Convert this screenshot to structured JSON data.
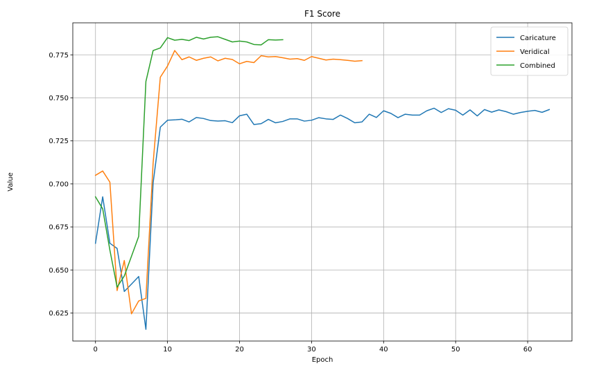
{
  "chart_data": {
    "type": "line",
    "title": "F1 Score",
    "xlabel": "Epoch",
    "ylabel": "Value",
    "xlim": [
      -3.15,
      66.15
    ],
    "ylim": [
      0.6087,
      0.7936
    ],
    "xticks": [
      0,
      10,
      20,
      30,
      40,
      50,
      60
    ],
    "yticks": [
      0.625,
      0.65,
      0.675,
      0.7,
      0.725,
      0.75,
      0.775
    ],
    "ytick_labels": [
      "0.625",
      "0.650",
      "0.675",
      "0.700",
      "0.725",
      "0.750",
      "0.775"
    ],
    "grid": true,
    "legend_position": "top-right",
    "series": [
      {
        "name": "Caricature",
        "color": "#1f77b4",
        "x": [
          0,
          1,
          2,
          3,
          4,
          5,
          6,
          7,
          8,
          9,
          10,
          11,
          12,
          13,
          14,
          15,
          16,
          17,
          18,
          19,
          20,
          21,
          22,
          23,
          24,
          25,
          26,
          27,
          28,
          29,
          30,
          31,
          32,
          33,
          34,
          35,
          36,
          37,
          38,
          39,
          40,
          41,
          42,
          43,
          44,
          45,
          46,
          47,
          48,
          49,
          50,
          51,
          52,
          53,
          54,
          55,
          56,
          57,
          58,
          59,
          60,
          61,
          62,
          63
        ],
        "y": [
          0.6655,
          0.6925,
          0.6655,
          0.6625,
          0.6375,
          0.6418,
          0.6462,
          0.6155,
          0.7005,
          0.733,
          0.737,
          0.7372,
          0.7376,
          0.736,
          0.7386,
          0.738,
          0.7368,
          0.7365,
          0.7367,
          0.7356,
          0.7396,
          0.7405,
          0.7345,
          0.735,
          0.7375,
          0.7355,
          0.7363,
          0.7378,
          0.7378,
          0.7365,
          0.737,
          0.7385,
          0.7378,
          0.7375,
          0.74,
          0.738,
          0.7355,
          0.736,
          0.7405,
          0.7386,
          0.7425,
          0.741,
          0.7385,
          0.7405,
          0.74,
          0.74,
          0.7425,
          0.744,
          0.7415,
          0.7437,
          0.7428,
          0.74,
          0.743,
          0.7395,
          0.7432,
          0.7417,
          0.743,
          0.742,
          0.7405,
          0.7415,
          0.7422,
          0.7427,
          0.7416,
          0.7432
        ]
      },
      {
        "name": "Veridical",
        "color": "#ff7f0e",
        "x": [
          0,
          1,
          2,
          3,
          4,
          5,
          6,
          7,
          8,
          9,
          10,
          11,
          12,
          13,
          14,
          15,
          16,
          17,
          18,
          19,
          20,
          21,
          22,
          23,
          24,
          25,
          26,
          27,
          28,
          29,
          30,
          31,
          32,
          33,
          34,
          35,
          36,
          37
        ],
        "y": [
          0.705,
          0.7075,
          0.701,
          0.638,
          0.6555,
          0.6245,
          0.632,
          0.6335,
          0.712,
          0.762,
          0.7685,
          0.7775,
          0.7722,
          0.7738,
          0.7718,
          0.773,
          0.7738,
          0.7715,
          0.773,
          0.7723,
          0.7698,
          0.7712,
          0.7705,
          0.7745,
          0.7738,
          0.774,
          0.7733,
          0.7725,
          0.7728,
          0.7718,
          0.774,
          0.773,
          0.772,
          0.7725,
          0.7722,
          0.7718,
          0.7713,
          0.7716
        ]
      },
      {
        "name": "Combined",
        "color": "#2ca02c",
        "x": [
          0,
          1,
          2,
          3,
          4,
          5,
          6,
          7,
          8,
          9,
          10,
          11,
          12,
          13,
          14,
          15,
          16,
          17,
          18,
          19,
          20,
          21,
          22,
          23,
          24,
          25,
          26
        ],
        "y": [
          0.6925,
          0.6855,
          0.6615,
          0.64,
          0.6465,
          0.658,
          0.6695,
          0.7595,
          0.7775,
          0.779,
          0.785,
          0.7835,
          0.784,
          0.7833,
          0.7852,
          0.7842,
          0.7852,
          0.7855,
          0.784,
          0.7825,
          0.783,
          0.7825,
          0.781,
          0.7808,
          0.7838,
          0.7836,
          0.7838
        ]
      }
    ]
  }
}
